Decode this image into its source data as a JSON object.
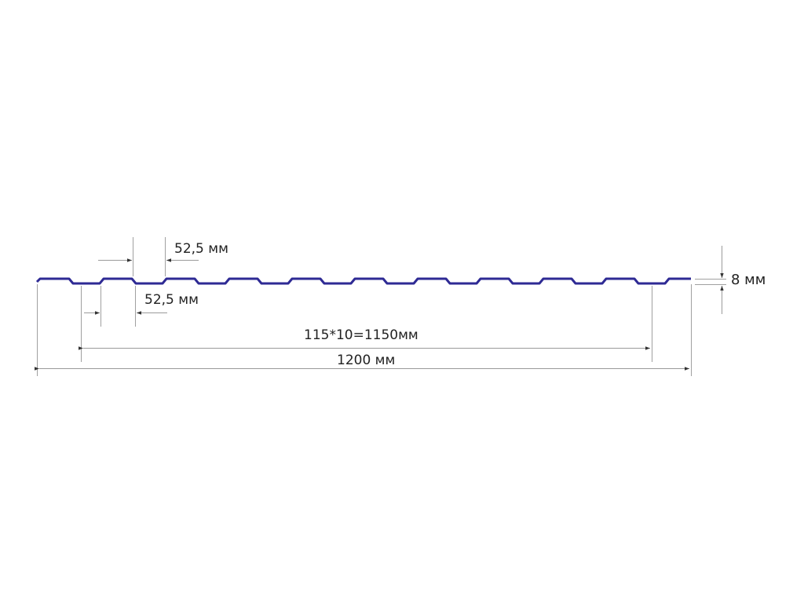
{
  "profile_color": "#2e2a94",
  "dimension_color": "#9a9a9a",
  "labels": {
    "top_pitch": "52,5 мм",
    "bottom_pitch": "52,5 мм",
    "height": "8 мм",
    "working_width": "115*10=1150мм",
    "total_width": "1200 мм"
  }
}
